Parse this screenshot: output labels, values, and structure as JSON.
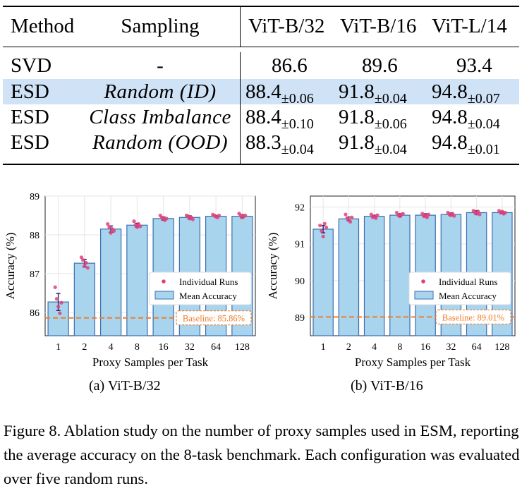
{
  "table": {
    "headers": [
      "Method",
      "Sampling",
      "ViT-B/32",
      "ViT-B/16",
      "ViT-L/14"
    ],
    "rows": [
      {
        "method": "SVD",
        "sampling": "-",
        "v1": "86.6",
        "v1_std": "",
        "v2": "89.6",
        "v2_std": "",
        "v3": "93.4",
        "v3_std": ""
      },
      {
        "method": "ESD",
        "sampling": "Random (ID)",
        "v1": "88.4",
        "v1_std": "±0.06",
        "v2": "91.8",
        "v2_std": "±0.04",
        "v3": "94.8",
        "v3_std": "±0.07"
      },
      {
        "method": "ESD",
        "sampling": "Class Imbalance",
        "v1": "88.4",
        "v1_std": "±0.10",
        "v2": "91.8",
        "v2_std": "±0.06",
        "v3": "94.8",
        "v3_std": "±0.04"
      },
      {
        "method": "ESD",
        "sampling": "Random (OOD)",
        "v1": "88.3",
        "v1_std": "±0.04",
        "v2": "91.8",
        "v2_std": "±0.04",
        "v3": "94.8",
        "v3_std": "±0.01"
      }
    ],
    "highlight_color": "#cfe2f6"
  },
  "chart_data": [
    {
      "type": "bar",
      "caption": "(a) ViT-B/32",
      "categories": [
        "1",
        "2",
        "4",
        "8",
        "16",
        "32",
        "64",
        "128"
      ],
      "series": [
        {
          "name": "Mean Accuracy",
          "values": [
            86.27,
            87.27,
            88.15,
            88.25,
            88.42,
            88.45,
            88.48,
            88.48
          ]
        }
      ],
      "error": [
        0.22,
        0.1,
        0.08,
        0.05,
        0.04,
        0.04,
        0.02,
        0.04
      ],
      "runs": [
        [
          86.65,
          86.35,
          86.15,
          85.98,
          86.25
        ],
        [
          87.42,
          87.35,
          87.2,
          87.28,
          87.15
        ],
        [
          88.28,
          88.2,
          88.05,
          88.15,
          88.1
        ],
        [
          88.35,
          88.25,
          88.2,
          88.28,
          88.22
        ],
        [
          88.5,
          88.45,
          88.4,
          88.38,
          88.42
        ],
        [
          88.5,
          88.48,
          88.42,
          88.45,
          88.4
        ],
        [
          88.52,
          88.5,
          88.47,
          88.45,
          88.5
        ],
        [
          88.55,
          88.5,
          88.45,
          88.48,
          88.5
        ]
      ],
      "baseline": 85.86,
      "baseline_label": "Baseline: 85.86%",
      "xlabel": "Proxy Samples per Task",
      "ylabel": "Accuracy (%)",
      "ylim": [
        85.4,
        89.0
      ],
      "yticks": [
        86,
        87,
        88,
        89
      ],
      "legend": [
        "Individual Runs",
        "Mean Accuracy"
      ],
      "legend_position": "center-right"
    },
    {
      "type": "bar",
      "caption": "(b) ViT-B/16",
      "categories": [
        "1",
        "2",
        "4",
        "8",
        "16",
        "32",
        "64",
        "128"
      ],
      "series": [
        {
          "name": "Mean Accuracy",
          "values": [
            91.4,
            91.68,
            91.75,
            91.78,
            91.78,
            91.8,
            91.85,
            91.85
          ]
        }
      ],
      "error": [
        0.1,
        0.05,
        0.03,
        0.04,
        0.04,
        0.04,
        0.05,
        0.03
      ],
      "runs": [
        [
          91.5,
          91.35,
          91.2,
          91.55,
          91.45
        ],
        [
          91.8,
          91.7,
          91.65,
          91.6,
          91.72
        ],
        [
          91.8,
          91.72,
          91.75,
          91.7,
          91.78
        ],
        [
          91.85,
          91.78,
          91.75,
          91.8,
          91.82
        ],
        [
          91.82,
          91.75,
          91.78,
          91.72,
          91.8
        ],
        [
          91.85,
          91.8,
          91.78,
          91.82,
          91.76
        ],
        [
          91.9,
          91.85,
          91.82,
          91.88,
          91.8
        ],
        [
          91.9,
          91.85,
          91.88,
          91.82,
          91.85
        ]
      ],
      "baseline": 89.01,
      "baseline_label": "Baseline: 89.01%",
      "xlabel": "Proxy Samples per Task",
      "ylabel": "Accuracy (%)",
      "ylim": [
        88.5,
        92.3
      ],
      "yticks": [
        89,
        90,
        91,
        92
      ],
      "legend": [
        "Individual Runs",
        "Mean Accuracy"
      ],
      "legend_position": "center-right"
    }
  ],
  "colors": {
    "bar_fill": "#a9d4ee",
    "bar_edge": "#3a6fb0",
    "run_dot": "#e0417a",
    "baseline": "#ef7d2a",
    "error_bar": "#2a2b6e",
    "grid": "#e4e4e4"
  },
  "caption": "Figure 8.  Ablation study on the number of proxy samples used in ESM, reporting the average accuracy on the 8-task benchmark. Each configuration was evaluated over five random runs."
}
